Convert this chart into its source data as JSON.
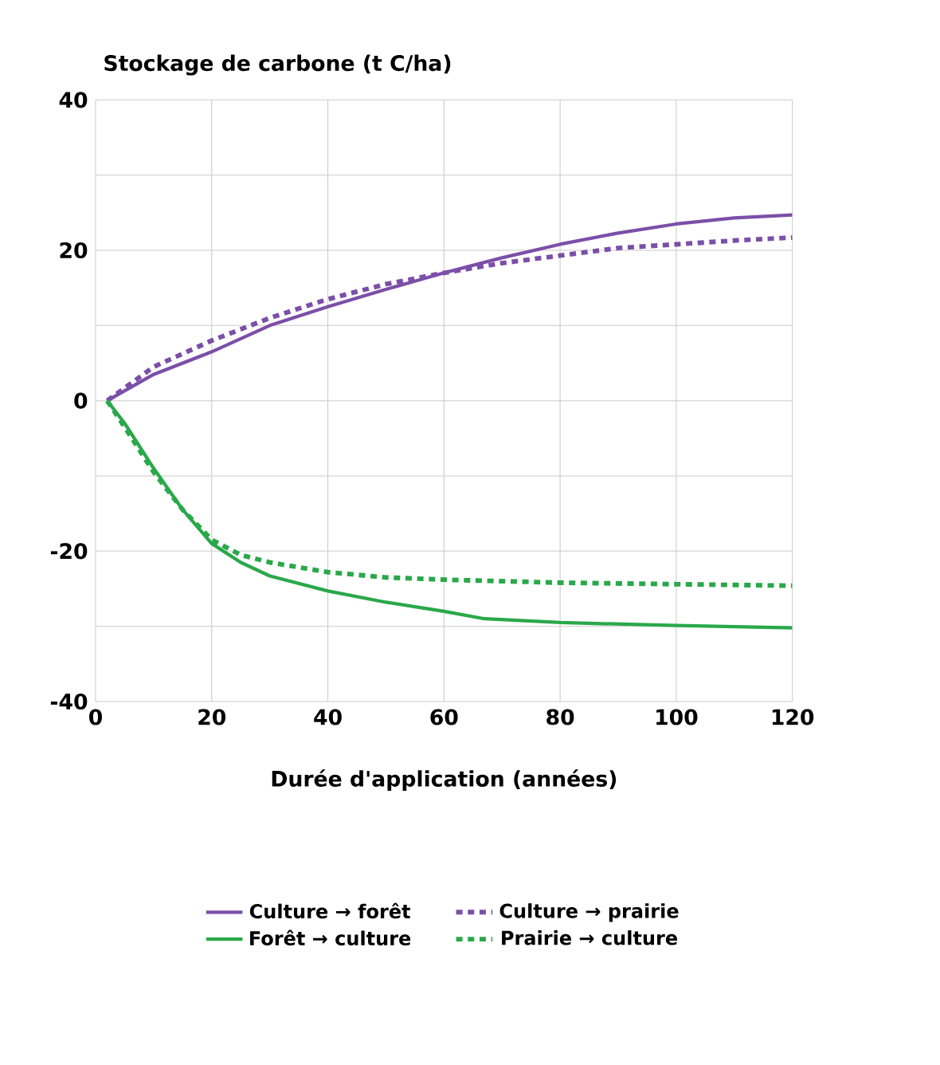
{
  "chart_data": {
    "type": "line",
    "ylabel": "Stockage de carbone (t C/ha)",
    "xlabel": "Durée d'application (années)",
    "xlim": [
      0,
      120
    ],
    "xticks": [
      0,
      20,
      40,
      60,
      80,
      100,
      120
    ],
    "ylim": [
      -40,
      40
    ],
    "yticks": [
      -40,
      {
        "value": -30,
        "label": null
      },
      -20,
      {
        "value": -10,
        "label": null
      },
      0,
      {
        "value": 10,
        "label": null
      },
      20,
      {
        "value": 30,
        "label": null
      },
      40
    ],
    "grid": true,
    "legend": "bottom",
    "series": [
      {
        "name": "Culture → forêt",
        "color": "#7b4fa8",
        "line_style": "solid",
        "x": [
          2,
          10,
          20,
          30,
          40,
          50,
          60,
          70,
          80,
          90,
          100,
          110,
          120
        ],
        "values": [
          0,
          3.5,
          6.5,
          10,
          12.5,
          14.8,
          17,
          19,
          20.8,
          22.3,
          23.5,
          24.3,
          24.7
        ]
      },
      {
        "name": "Culture → prairie",
        "color": "#7b4fa8",
        "line_style": "dotted",
        "x": [
          2,
          10,
          20,
          30,
          40,
          50,
          60,
          70,
          80,
          90,
          100,
          110,
          120
        ],
        "values": [
          0,
          4.5,
          8,
          11,
          13.5,
          15.5,
          17,
          18.3,
          19.3,
          20.3,
          20.8,
          21.3,
          21.7
        ]
      },
      {
        "name": "Forêt → culture",
        "color": "#2aa84a",
        "line_style": "solid",
        "x": [
          2,
          5,
          10,
          15,
          20,
          25,
          30,
          40,
          50,
          60,
          67,
          80,
          100,
          120
        ],
        "values": [
          0,
          -3,
          -9,
          -14.5,
          -19,
          -21.5,
          -23.3,
          -25.3,
          -26.8,
          -28,
          -29,
          -29.5,
          -29.9,
          -30.2
        ]
      },
      {
        "name": "Prairie → culture",
        "color": "#2aa84a",
        "line_style": "dotted",
        "x": [
          2,
          5,
          10,
          15,
          20,
          25,
          30,
          40,
          50,
          60,
          80,
          100,
          120
        ],
        "values": [
          0,
          -3.5,
          -9.5,
          -14.5,
          -18.5,
          -20.5,
          -21.5,
          -22.8,
          -23.5,
          -23.8,
          -24.2,
          -24.4,
          -24.6
        ]
      }
    ]
  }
}
